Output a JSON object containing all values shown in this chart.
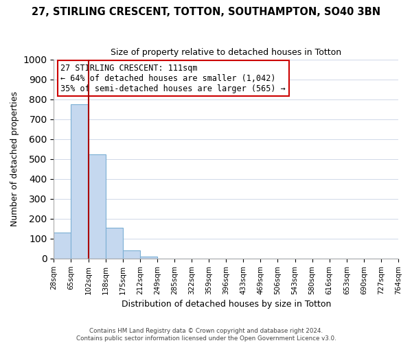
{
  "title": "27, STIRLING CRESCENT, TOTTON, SOUTHAMPTON, SO40 3BN",
  "subtitle": "Size of property relative to detached houses in Totton",
  "xlabel": "Distribution of detached houses by size in Totton",
  "ylabel": "Number of detached properties",
  "footer_lines": [
    "Contains HM Land Registry data © Crown copyright and database right 2024.",
    "Contains public sector information licensed under the Open Government Licence v3.0."
  ],
  "tick_labels": [
    "28sqm",
    "65sqm",
    "102sqm",
    "138sqm",
    "175sqm",
    "212sqm",
    "249sqm",
    "285sqm",
    "322sqm",
    "359sqm",
    "396sqm",
    "433sqm",
    "469sqm",
    "506sqm",
    "543sqm",
    "580sqm",
    "616sqm",
    "653sqm",
    "690sqm",
    "727sqm",
    "764sqm"
  ],
  "bar_values": [
    130,
    775,
    525,
    155,
    40,
    10,
    0,
    0,
    0,
    0,
    0,
    0,
    0,
    0,
    0,
    0,
    0,
    0,
    0,
    0
  ],
  "bar_color": "#c5d8ef",
  "bar_edge_color": "#7bafd4",
  "ylim": [
    0,
    1000
  ],
  "yticks": [
    0,
    100,
    200,
    300,
    400,
    500,
    600,
    700,
    800,
    900,
    1000
  ],
  "vline_color": "#aa0000",
  "annotation_title": "27 STIRLING CRESCENT: 111sqm",
  "annotation_line1": "← 64% of detached houses are smaller (1,042)",
  "annotation_line2": "35% of semi-detached houses are larger (565) →",
  "annotation_box_color": "#ffffff",
  "annotation_box_edgecolor": "#cc0000"
}
